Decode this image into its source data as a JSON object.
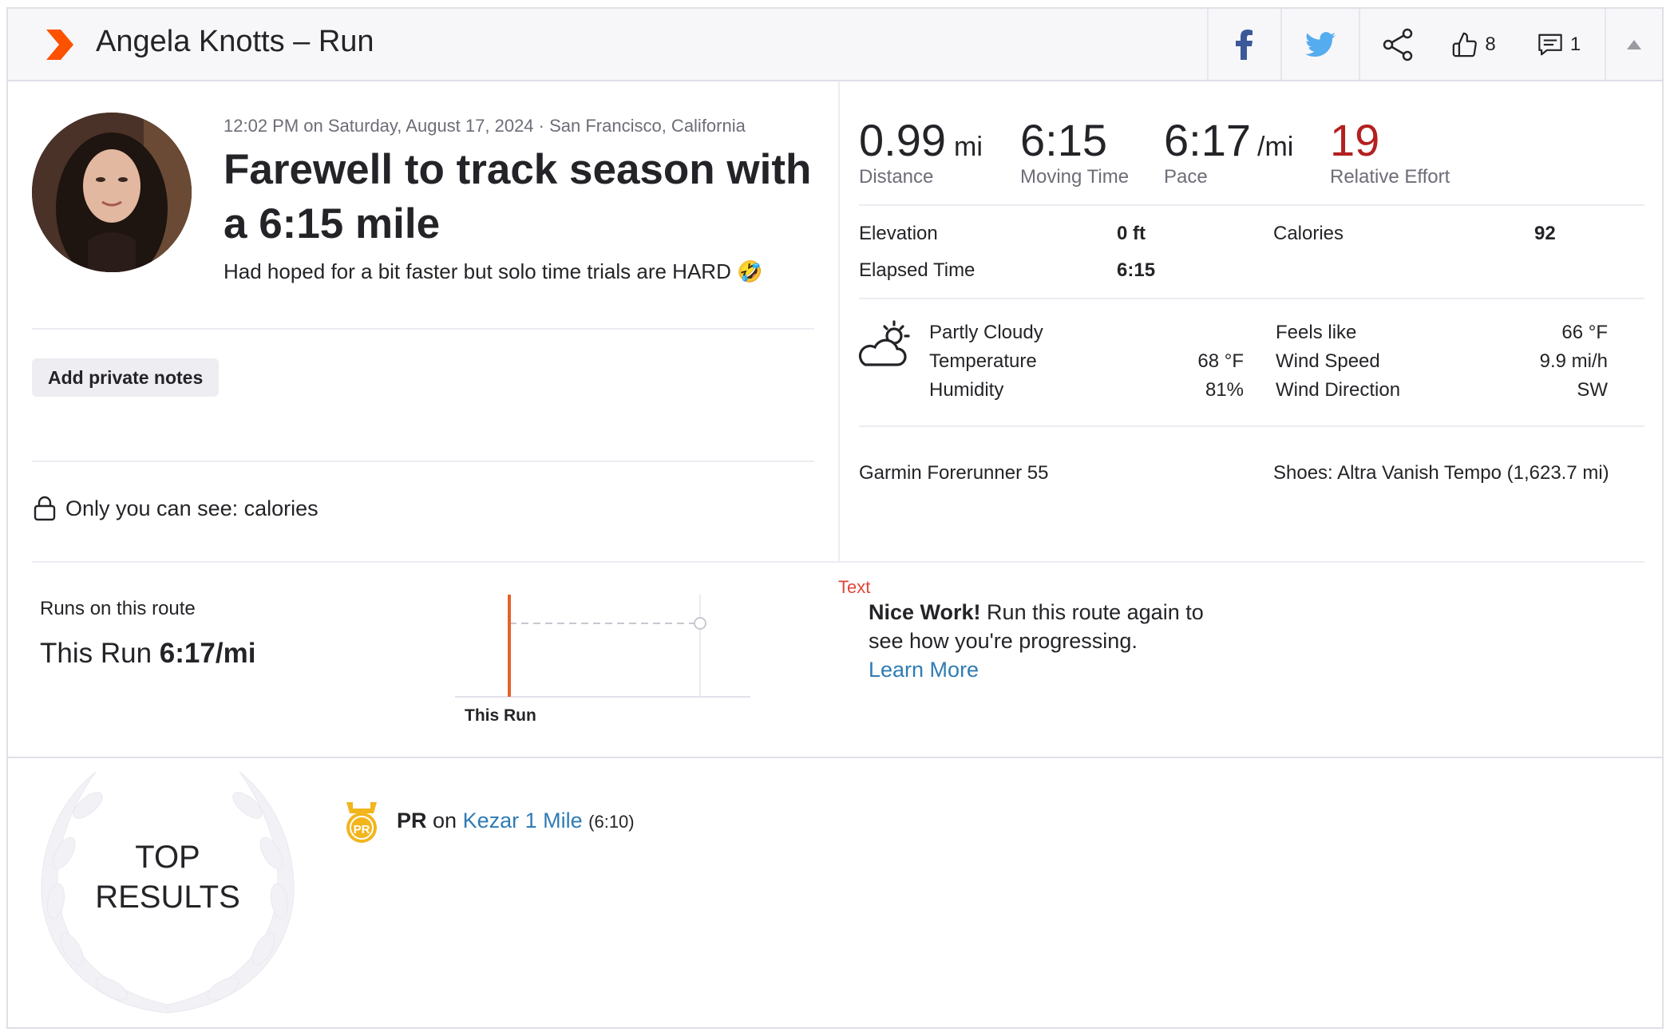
{
  "header": {
    "title": "Angela Knotts – Run",
    "kudos_count": "8",
    "comments_count": "1"
  },
  "activity": {
    "datetime_location": "12:02 PM on Saturday, August 17, 2024 · San Francisco, California",
    "title_line1": "Farewell to track season with",
    "title_line2": "a 6:15 mile",
    "description": "Had hoped for a bit faster but solo time trials are HARD",
    "emoji": "🤣",
    "private_notes_button": "Add private notes",
    "visibility_note": "Only you can see: calories"
  },
  "stats": {
    "distance": {
      "value": "0.99",
      "unit": "mi",
      "label": "Distance"
    },
    "moving_time": {
      "value": "6:15",
      "label": "Moving Time"
    },
    "pace": {
      "value": "6:17",
      "unit": "/mi",
      "label": "Pace"
    },
    "relative_effort": {
      "value": "19",
      "label": "Relative Effort"
    },
    "elevation": {
      "label": "Elevation",
      "value": "0 ft"
    },
    "calories": {
      "label": "Calories",
      "value": "92"
    },
    "elapsed_time": {
      "label": "Elapsed Time",
      "value": "6:15"
    }
  },
  "weather": {
    "condition": "Partly Cloudy",
    "temperature_label": "Temperature",
    "temperature_value": "68 °F",
    "humidity_label": "Humidity",
    "humidity_value": "81%",
    "feels_like_label": "Feels like",
    "feels_like_value": "66 °F",
    "wind_speed_label": "Wind Speed",
    "wind_speed_value": "9.9 mi/h",
    "wind_direction_label": "Wind Direction",
    "wind_direction_value": "SW"
  },
  "gear": {
    "device": "Garmin Forerunner 55",
    "shoes": "Shoes: Altra Vanish Tempo (1,623.7 mi)"
  },
  "route": {
    "heading": "Runs on this route",
    "this_run_label": "This Run",
    "this_run_pace": "6:17/mi",
    "chart_x_label": "This Run"
  },
  "promo": {
    "tag": "Text",
    "bold": "Nice Work!",
    "line1_rest": " Run this route again to",
    "line2": "see how you're progressing.",
    "link": "Learn More"
  },
  "results": {
    "badge_line1": "TOP",
    "badge_line2": "RESULTS",
    "pr_icon_text": "PR",
    "pr_label": "PR",
    "pr_on": " on ",
    "pr_segment": "Kezar 1 Mile",
    "pr_time": "(6:10)"
  },
  "colors": {
    "brand_orange": "#fc5200",
    "relative_effort": "#b3201f",
    "link": "#2f7bb5",
    "facebook": "#3b5998",
    "twitter": "#55acee",
    "pr_gold": "#f2b51c"
  }
}
